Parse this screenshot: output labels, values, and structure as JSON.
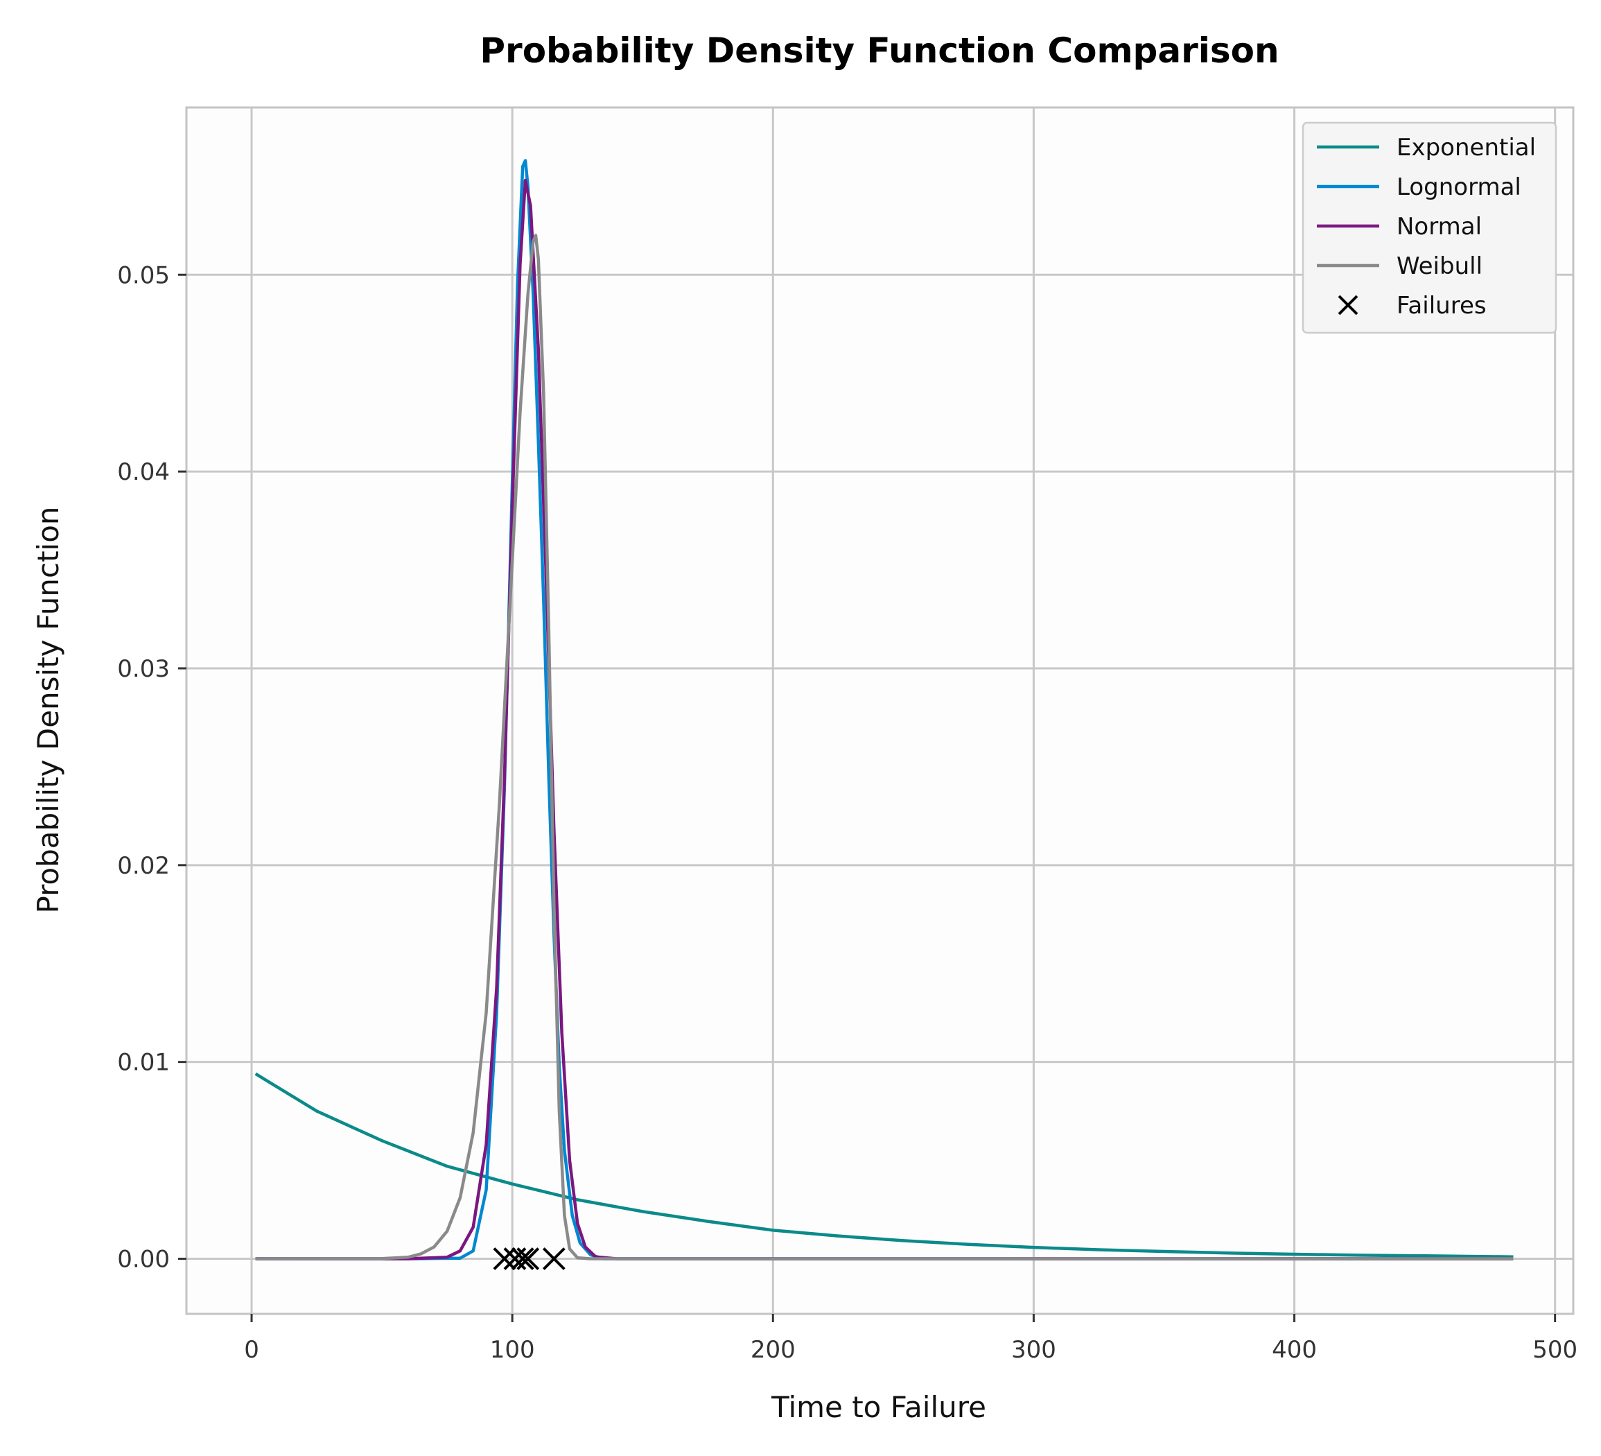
{
  "chart_data": {
    "type": "line",
    "title": "Probability Density Function Comparison",
    "xlabel": "Time to Failure",
    "ylabel": "Probability Density Function",
    "xlim": [
      -25,
      507
    ],
    "ylim": [
      -0.0028,
      0.0585
    ],
    "x_ticks": [
      0,
      100,
      200,
      300,
      400,
      500
    ],
    "x_tick_labels": [
      "0",
      "100",
      "200",
      "300",
      "400",
      "500"
    ],
    "y_ticks": [
      0.0,
      0.01,
      0.02,
      0.03,
      0.04,
      0.05
    ],
    "y_tick_labels": [
      "0.00",
      "0.01",
      "0.02",
      "0.03",
      "0.04",
      "0.05"
    ],
    "grid": true,
    "legend_position": "top-right",
    "series": [
      {
        "name": "Exponential",
        "color": "#0b8a8a",
        "x": [
          1.5,
          25,
          50,
          75,
          100,
          125,
          150,
          175,
          200,
          225,
          250,
          275,
          300,
          325,
          350,
          375,
          400,
          425,
          450,
          484
        ],
        "values": [
          0.0094,
          0.0075,
          0.006,
          0.0047,
          0.0038,
          0.003,
          0.0024,
          0.0019,
          0.00145,
          0.00116,
          0.00092,
          0.00073,
          0.00058,
          0.00046,
          0.00037,
          0.00029,
          0.00023,
          0.00018,
          0.00015,
          0.0001
        ]
      },
      {
        "name": "Lognormal",
        "color": "#0288d1",
        "x": [
          1.5,
          60,
          80,
          85,
          90,
          94,
          97,
          100,
          102,
          104,
          105,
          106,
          108,
          110,
          112,
          114,
          116,
          118,
          120,
          123,
          126,
          130,
          135,
          150,
          484
        ],
        "values": [
          0,
          0,
          3e-05,
          0.0004,
          0.0035,
          0.0125,
          0.024,
          0.0395,
          0.0495,
          0.0555,
          0.0558,
          0.0545,
          0.049,
          0.0415,
          0.0335,
          0.0245,
          0.0165,
          0.0098,
          0.0055,
          0.0022,
          0.0008,
          0.0002,
          0,
          0,
          0
        ]
      },
      {
        "name": "Normal",
        "color": "#7b1780",
        "x": [
          1.5,
          60,
          75,
          80,
          85,
          90,
          94,
          97,
          100,
          103,
          105,
          107,
          110,
          113,
          116,
          119,
          122,
          125,
          128,
          132,
          140,
          484
        ],
        "values": [
          0,
          0,
          8e-05,
          0.0004,
          0.0016,
          0.0058,
          0.0138,
          0.0245,
          0.0382,
          0.0505,
          0.0548,
          0.0535,
          0.0462,
          0.0345,
          0.0218,
          0.0115,
          0.005,
          0.0018,
          0.0006,
          0.0001,
          0,
          0
        ]
      },
      {
        "name": "Weibull",
        "color": "#8a8a8a",
        "x": [
          1.5,
          50,
          60,
          65,
          70,
          75,
          80,
          85,
          90,
          95,
          100,
          103,
          106,
          108,
          109,
          110,
          112,
          114,
          116,
          118,
          120,
          122,
          125,
          130,
          484
        ],
        "values": [
          0,
          1e-05,
          8e-05,
          0.00025,
          0.0006,
          0.0014,
          0.0031,
          0.0064,
          0.0125,
          0.023,
          0.0355,
          0.043,
          0.049,
          0.0517,
          0.052,
          0.0508,
          0.044,
          0.032,
          0.018,
          0.0075,
          0.0022,
          0.0005,
          5e-05,
          0,
          0
        ]
      },
      {
        "name": "Failures",
        "color": "#000000",
        "marker": "x",
        "x": [
          97,
          101,
          104,
          106,
          116
        ],
        "values": [
          0,
          0,
          0,
          0,
          0
        ]
      }
    ]
  }
}
